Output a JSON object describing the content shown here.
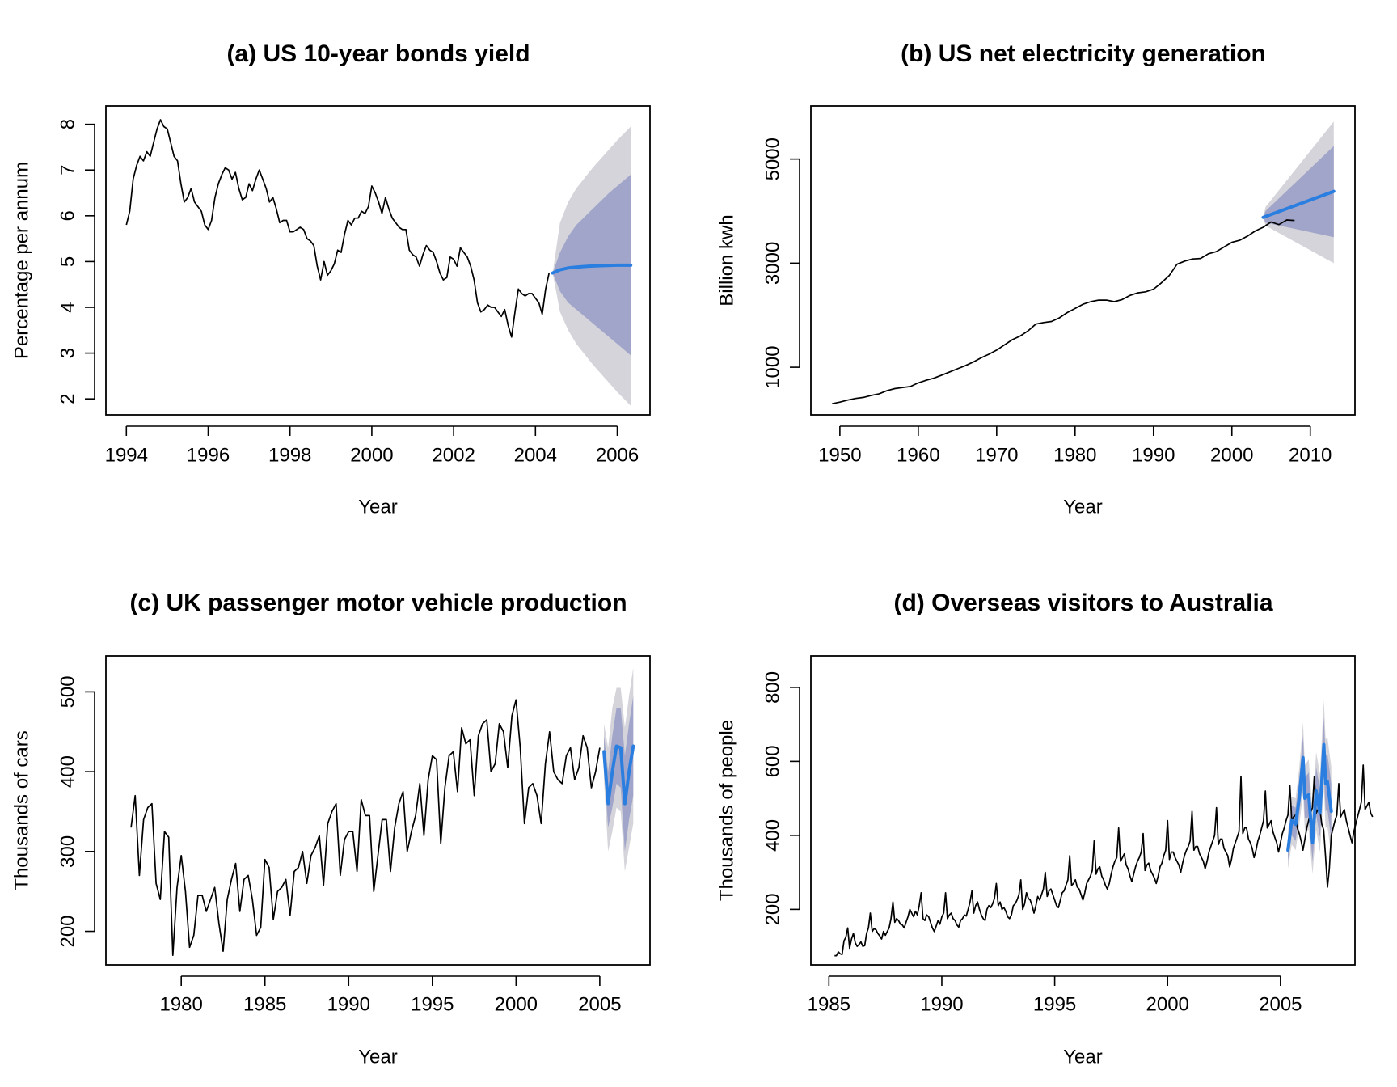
{
  "colors": {
    "history": "#000000",
    "forecast": "#2a7ee0",
    "band80": "#a1a5c9",
    "band95": "#d4d4da",
    "frame": "#000000"
  },
  "chart_data": [
    {
      "type": "line",
      "title": "(a) US 10-year bonds yield",
      "xlabel": "Year",
      "ylabel": "Percentage per annum",
      "xlim": [
        1993.5,
        2006.8
      ],
      "ylim": [
        1.65,
        8.4
      ],
      "xticks": [
        1994,
        1996,
        1998,
        2000,
        2002,
        2004,
        2006
      ],
      "yticks": [
        2,
        3,
        4,
        5,
        6,
        7,
        8
      ],
      "grid": false,
      "history": {
        "start": 1994.0,
        "step": 0.08333,
        "values": [
          5.8,
          6.1,
          6.8,
          7.1,
          7.3,
          7.2,
          7.4,
          7.3,
          7.6,
          7.9,
          8.1,
          7.95,
          7.9,
          7.6,
          7.3,
          7.2,
          6.7,
          6.3,
          6.4,
          6.6,
          6.3,
          6.2,
          6.1,
          5.8,
          5.7,
          5.9,
          6.4,
          6.7,
          6.9,
          7.05,
          7.0,
          6.8,
          6.95,
          6.6,
          6.35,
          6.4,
          6.7,
          6.55,
          6.8,
          7.0,
          6.8,
          6.6,
          6.3,
          6.4,
          6.15,
          5.85,
          5.9,
          5.9,
          5.65,
          5.65,
          5.7,
          5.75,
          5.7,
          5.5,
          5.45,
          5.35,
          4.9,
          4.6,
          5.0,
          4.7,
          4.8,
          4.95,
          5.25,
          5.2,
          5.6,
          5.9,
          5.8,
          5.95,
          5.95,
          6.1,
          6.05,
          6.2,
          6.65,
          6.5,
          6.3,
          6.05,
          6.4,
          6.15,
          5.95,
          5.85,
          5.75,
          5.7,
          5.7,
          5.25,
          5.15,
          5.1,
          4.9,
          5.15,
          5.35,
          5.25,
          5.2,
          5.0,
          4.75,
          4.6,
          4.65,
          5.1,
          5.05,
          4.9,
          5.3,
          5.2,
          5.1,
          4.9,
          4.6,
          4.1,
          3.9,
          3.95,
          4.05,
          4.0,
          4.0,
          3.9,
          3.8,
          3.95,
          3.6,
          3.35,
          3.9,
          4.4,
          4.3,
          4.25,
          4.3,
          4.3,
          4.2,
          4.1,
          3.85,
          4.4,
          4.75
        ]
      },
      "forecast": {
        "start": 2004.42,
        "end": 2006.33,
        "points": [
          [
            2004.42,
            4.75
          ],
          [
            2004.6,
            4.82
          ],
          [
            2004.8,
            4.86
          ],
          [
            2005.0,
            4.88
          ],
          [
            2005.3,
            4.9
          ],
          [
            2005.6,
            4.91
          ],
          [
            2006.0,
            4.92
          ],
          [
            2006.33,
            4.92
          ]
        ],
        "band80": [
          [
            2004.42,
            4.75,
            4.75
          ],
          [
            2004.6,
            5.2,
            4.35
          ],
          [
            2004.8,
            5.55,
            4.1
          ],
          [
            2005.0,
            5.8,
            3.95
          ],
          [
            2005.4,
            6.15,
            3.65
          ],
          [
            2005.8,
            6.5,
            3.35
          ],
          [
            2006.0,
            6.65,
            3.2
          ],
          [
            2006.33,
            6.9,
            2.95
          ]
        ],
        "band95": [
          [
            2004.42,
            4.75,
            4.75
          ],
          [
            2004.6,
            5.85,
            3.9
          ],
          [
            2004.8,
            6.3,
            3.5
          ],
          [
            2005.0,
            6.6,
            3.2
          ],
          [
            2005.4,
            7.05,
            2.75
          ],
          [
            2005.8,
            7.45,
            2.35
          ],
          [
            2006.0,
            7.65,
            2.15
          ],
          [
            2006.33,
            7.95,
            1.85
          ]
        ]
      }
    },
    {
      "type": "line",
      "title": "(b) US net electricity generation",
      "xlabel": "Year",
      "ylabel": "Billion kwh",
      "xlim": [
        1946.3,
        2015.7
      ],
      "ylim": [
        85,
        6020
      ],
      "xticks": [
        1950,
        1960,
        1970,
        1980,
        1990,
        2000,
        2010
      ],
      "yticks": [
        1000,
        3000,
        5000
      ],
      "grid": false,
      "history": {
        "start": 1949,
        "step": 1,
        "values": [
          300,
          330,
          370,
          400,
          420,
          460,
          490,
          550,
          590,
          610,
          630,
          700,
          750,
          790,
          850,
          910,
          970,
          1030,
          1100,
          1180,
          1250,
          1330,
          1430,
          1530,
          1600,
          1700,
          1830,
          1860,
          1880,
          1950,
          2050,
          2130,
          2210,
          2260,
          2290,
          2290,
          2260,
          2300,
          2380,
          2430,
          2450,
          2500,
          2620,
          2760,
          2980,
          3040,
          3080,
          3090,
          3180,
          3220,
          3310,
          3400,
          3440,
          3520,
          3620,
          3690,
          3790,
          3740,
          3830,
          3820
        ]
      },
      "forecast": {
        "start": 2004,
        "end": 2013,
        "points": [
          [
            2004,
            3880
          ],
          [
            2013,
            4380
          ]
        ],
        "band80": [
          [
            2004,
            3880,
            3880
          ],
          [
            2004.3,
            4000,
            3780
          ],
          [
            2013,
            5250,
            3500
          ]
        ],
        "band95": [
          [
            2004,
            3880,
            3880
          ],
          [
            2004.3,
            4080,
            3720
          ],
          [
            2013,
            5720,
            3000
          ]
        ]
      }
    },
    {
      "type": "line",
      "title": "(c) UK passenger motor vehicle production",
      "xlabel": "Year",
      "ylabel": "Thousands of cars",
      "xlim": [
        1975.5,
        2008.0
      ],
      "ylim": [
        158,
        545
      ],
      "xticks": [
        1980,
        1985,
        1990,
        1995,
        2000,
        2005
      ],
      "yticks": [
        200,
        300,
        400,
        500
      ],
      "grid": false,
      "history": {
        "start": 1977.0,
        "step": 0.25,
        "values": [
          330,
          370,
          270,
          340,
          355,
          360,
          260,
          240,
          325,
          318,
          170,
          255,
          295,
          250,
          180,
          195,
          245,
          245,
          225,
          240,
          255,
          210,
          175,
          240,
          265,
          285,
          225,
          265,
          270,
          240,
          195,
          205,
          290,
          280,
          215,
          250,
          255,
          265,
          220,
          275,
          280,
          300,
          260,
          295,
          305,
          320,
          258,
          335,
          350,
          360,
          270,
          315,
          325,
          325,
          275,
          365,
          345,
          345,
          250,
          295,
          340,
          340,
          275,
          330,
          360,
          375,
          300,
          325,
          345,
          385,
          320,
          390,
          420,
          415,
          310,
          380,
          420,
          425,
          375,
          455,
          435,
          440,
          370,
          445,
          460,
          465,
          400,
          410,
          460,
          450,
          405,
          470,
          490,
          430,
          335,
          380,
          385,
          370,
          335,
          410,
          450,
          400,
          390,
          385,
          420,
          430,
          390,
          405,
          445,
          430,
          380,
          400,
          430
        ]
      },
      "forecast": {
        "start": 2005.25,
        "end": 2007.0,
        "points": [
          [
            2005.25,
            425
          ],
          [
            2005.5,
            360
          ],
          [
            2005.75,
            400
          ],
          [
            2006.0,
            432
          ],
          [
            2006.25,
            430
          ],
          [
            2006.5,
            360
          ],
          [
            2006.75,
            400
          ],
          [
            2007.0,
            432
          ]
        ],
        "band80": [
          [
            2005.25,
            445,
            405
          ],
          [
            2005.5,
            400,
            330
          ],
          [
            2005.75,
            445,
            355
          ],
          [
            2006.0,
            480,
            385
          ],
          [
            2006.25,
            480,
            380
          ],
          [
            2006.5,
            420,
            300
          ],
          [
            2006.75,
            460,
            340
          ],
          [
            2007.0,
            495,
            370
          ]
        ],
        "band95": [
          [
            2005.25,
            460,
            390
          ],
          [
            2005.5,
            430,
            300
          ],
          [
            2005.75,
            480,
            325
          ],
          [
            2006.0,
            505,
            355
          ],
          [
            2006.25,
            505,
            350
          ],
          [
            2006.5,
            455,
            275
          ],
          [
            2006.75,
            495,
            305
          ],
          [
            2007.0,
            530,
            335
          ]
        ]
      }
    },
    {
      "type": "line",
      "title": "(d) Overseas visitors to Australia",
      "xlabel": "Year",
      "ylabel": "Thousands of people",
      "xlim": [
        1984.2,
        2008.3
      ],
      "ylim": [
        50,
        885
      ],
      "xticks": [
        1985,
        1990,
        1995,
        2000,
        2005
      ],
      "yticks": [
        200,
        400,
        600,
        800
      ],
      "grid": false,
      "history": {
        "start": 1985.25,
        "step": 0.08333,
        "values": [
          75,
          75,
          85,
          80,
          78,
          115,
          125,
          150,
          95,
          120,
          135,
          110,
          100,
          105,
          112,
          100,
          102,
          135,
          150,
          190,
          140,
          148,
          145,
          135,
          128,
          120,
          140,
          130,
          140,
          150,
          175,
          220,
          165,
          175,
          170,
          160,
          158,
          150,
          165,
          180,
          200,
          190,
          180,
          195,
          185,
          210,
          245,
          175,
          170,
          185,
          180,
          165,
          150,
          140,
          155,
          170,
          160,
          180,
          190,
          245,
          175,
          185,
          190,
          175,
          170,
          158,
          152,
          170,
          175,
          185,
          182,
          200,
          220,
          250,
          190,
          210,
          220,
          200,
          185,
          175,
          170,
          200,
          210,
          205,
          215,
          230,
          270,
          210,
          220,
          200,
          205,
          195,
          180,
          175,
          185,
          210,
          215,
          225,
          240,
          280,
          200,
          215,
          245,
          230,
          225,
          210,
          190,
          210,
          235,
          225,
          240,
          255,
          300,
          235,
          250,
          255,
          240,
          225,
          210,
          205,
          225,
          245,
          250,
          265,
          280,
          345,
          265,
          270,
          280,
          260,
          255,
          240,
          225,
          245,
          270,
          280,
          290,
          305,
          385,
          295,
          310,
          315,
          290,
          280,
          265,
          255,
          270,
          295,
          315,
          330,
          340,
          420,
          330,
          340,
          350,
          320,
          310,
          290,
          275,
          295,
          315,
          330,
          340,
          355,
          405,
          305,
          320,
          325,
          305,
          295,
          285,
          270,
          290,
          315,
          325,
          345,
          360,
          440,
          335,
          355,
          355,
          340,
          330,
          320,
          300,
          325,
          345,
          360,
          370,
          385,
          465,
          360,
          370,
          370,
          350,
          340,
          330,
          310,
          330,
          355,
          370,
          385,
          400,
          475,
          375,
          390,
          390,
          365,
          355,
          345,
          315,
          335,
          365,
          380,
          395,
          410,
          560,
          405,
          420,
          420,
          390,
          380,
          365,
          340,
          360,
          385,
          400,
          420,
          440,
          520,
          420,
          430,
          440,
          410,
          395,
          380,
          355,
          380,
          405,
          420,
          440,
          455,
          535,
          440,
          450,
          455,
          420,
          405,
          385,
          360,
          390,
          420,
          440,
          460,
          475,
          560,
          460,
          470,
          470,
          430,
          415,
          340,
          260,
          310,
          400,
          420,
          440,
          455,
          540,
          450,
          460,
          470,
          440,
          420,
          400,
          380,
          410,
          430,
          450,
          470,
          490,
          590,
          470,
          480,
          490,
          460,
          450
        ]
      },
      "forecast": {
        "start": 2005.33,
        "end": 2007.25,
        "points": [
          [
            2005.33,
            360
          ],
          [
            2005.5,
            440
          ],
          [
            2005.67,
            430
          ],
          [
            2005.83,
            500
          ],
          [
            2006.0,
            610
          ],
          [
            2006.08,
            500
          ],
          [
            2006.25,
            510
          ],
          [
            2006.42,
            380
          ],
          [
            2006.58,
            520
          ],
          [
            2006.75,
            460
          ],
          [
            2006.92,
            645
          ],
          [
            2007.0,
            540
          ],
          [
            2007.08,
            545
          ],
          [
            2007.25,
            465
          ]
        ],
        "band80": [
          [
            2005.33,
            390,
            330
          ],
          [
            2005.5,
            480,
            400
          ],
          [
            2005.67,
            475,
            385
          ],
          [
            2005.83,
            550,
            455
          ],
          [
            2006.0,
            670,
            550
          ],
          [
            2006.08,
            555,
            445
          ],
          [
            2006.25,
            570,
            450
          ],
          [
            2006.42,
            430,
            330
          ],
          [
            2006.58,
            585,
            455
          ],
          [
            2006.75,
            525,
            395
          ],
          [
            2006.92,
            720,
            570
          ],
          [
            2007.0,
            615,
            465
          ],
          [
            2007.08,
            620,
            470
          ],
          [
            2007.25,
            540,
            390
          ]
        ],
        "band95": [
          [
            2005.33,
            410,
            310
          ],
          [
            2005.5,
            505,
            375
          ],
          [
            2005.67,
            500,
            360
          ],
          [
            2005.83,
            580,
            425
          ],
          [
            2006.0,
            705,
            515
          ],
          [
            2006.08,
            590,
            410
          ],
          [
            2006.25,
            605,
            415
          ],
          [
            2006.42,
            465,
            295
          ],
          [
            2006.58,
            625,
            415
          ],
          [
            2006.75,
            565,
            355
          ],
          [
            2006.92,
            765,
            525
          ],
          [
            2007.0,
            660,
            420
          ],
          [
            2007.08,
            665,
            425
          ],
          [
            2007.25,
            585,
            345
          ]
        ]
      }
    }
  ]
}
